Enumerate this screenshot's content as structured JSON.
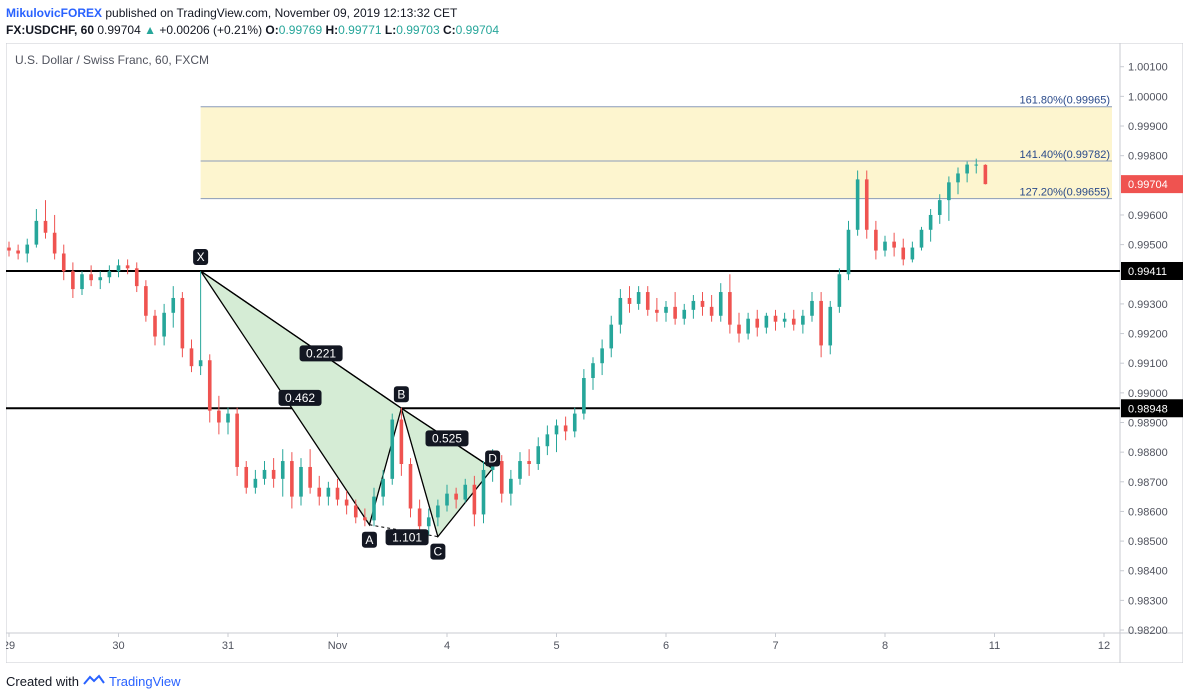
{
  "header": {
    "author": "MikulovicFOREX",
    "published_text": "published on TradingView.com, November 09, 2019 12:13:32 CET",
    "symbol": "FX:USDCHF, 60",
    "last": "0.99704",
    "change": "+0.00206 (+0.21%)",
    "o_label": "O:",
    "o_value": "0.99769",
    "h_label": "H:",
    "h_value": "0.99771",
    "l_label": "L:",
    "l_value": "0.99703",
    "c_label": "C:",
    "c_value": "0.99704"
  },
  "footer": {
    "created_with": "Created with",
    "brand": "TradingView"
  },
  "colors": {
    "up": "#26a69a",
    "down": "#ef5350",
    "pattern": "#d5ecd5",
    "zone": "#fdf5cf",
    "last_price": "#ef5350",
    "accent": "#2962ff"
  },
  "chart_data": {
    "type": "candlestick",
    "title": "U.S. Dollar / Swiss Franc, 60, FXCM",
    "ylim": [
      0.9819,
      1.0018
    ],
    "y_ticks": [
      "1.00100",
      "1.00000",
      "0.99900",
      "0.99800",
      "0.99600",
      "0.99500",
      "0.99300",
      "0.99200",
      "0.99100",
      "0.99000",
      "0.98900",
      "0.98800",
      "0.98700",
      "0.98600",
      "0.98500",
      "0.98400",
      "0.98300",
      "0.98200"
    ],
    "x_ticks": [
      "29",
      "30",
      "31",
      "Nov",
      "4",
      "5",
      "6",
      "7",
      "8",
      "11",
      "12"
    ],
    "horizontal_levels": [
      {
        "label": "0.99411",
        "value": 0.99411
      },
      {
        "label": "0.98948",
        "value": 0.98948
      }
    ],
    "last_price": {
      "label": "0.99704",
      "value": 0.99704
    },
    "fib_levels": [
      {
        "label": "161.80%(0.99965)",
        "value": 0.99965
      },
      {
        "label": "141.40%(0.99782)",
        "value": 0.99782
      },
      {
        "label": "127.20%(0.99655)",
        "value": 0.99655
      }
    ],
    "harmonic_points": [
      {
        "label": "X",
        "date": "Oct 30 18:00",
        "value": 0.99411
      },
      {
        "label": "A",
        "date": "Nov 1 07:00",
        "value": 0.98555
      },
      {
        "label": "B",
        "date": "Nov 1 14:00",
        "value": 0.98948
      },
      {
        "label": "C",
        "date": "Nov 1 22:00",
        "value": 0.98515
      },
      {
        "label": "D",
        "date": "Nov 4 10:00",
        "value": 0.98745
      }
    ],
    "ratios": [
      {
        "label": "0.462"
      },
      {
        "label": "0.221"
      },
      {
        "label": "0.525"
      },
      {
        "label": "1.101"
      }
    ],
    "candles": [
      {
        "t": "Oct 29 00:00",
        "o": 0.9949,
        "h": 0.9951,
        "l": 0.9946,
        "c": 0.9948
      },
      {
        "t": "Oct 29 02:00",
        "o": 0.9948,
        "h": 0.995,
        "l": 0.9945,
        "c": 0.9947
      },
      {
        "t": "Oct 29 04:00",
        "o": 0.9947,
        "h": 0.9952,
        "l": 0.9944,
        "c": 0.995
      },
      {
        "t": "Oct 29 06:00",
        "o": 0.995,
        "h": 0.9962,
        "l": 0.9949,
        "c": 0.9958
      },
      {
        "t": "Oct 29 08:00",
        "o": 0.9958,
        "h": 0.9965,
        "l": 0.9952,
        "c": 0.9954
      },
      {
        "t": "Oct 29 10:00",
        "o": 0.9954,
        "h": 0.996,
        "l": 0.9945,
        "c": 0.9947
      },
      {
        "t": "Oct 29 12:00",
        "o": 0.9947,
        "h": 0.995,
        "l": 0.9938,
        "c": 0.9941
      },
      {
        "t": "Oct 29 14:00",
        "o": 0.9941,
        "h": 0.9944,
        "l": 0.9932,
        "c": 0.9935
      },
      {
        "t": "Oct 29 16:00",
        "o": 0.9935,
        "h": 0.9941,
        "l": 0.9933,
        "c": 0.994
      },
      {
        "t": "Oct 29 18:00",
        "o": 0.994,
        "h": 0.9943,
        "l": 0.9936,
        "c": 0.9938
      },
      {
        "t": "Oct 29 20:00",
        "o": 0.9938,
        "h": 0.9941,
        "l": 0.9935,
        "c": 0.9939
      },
      {
        "t": "Oct 29 22:00",
        "o": 0.9939,
        "h": 0.9943,
        "l": 0.9937,
        "c": 0.9941
      },
      {
        "t": "Oct 30 00:00",
        "o": 0.9941,
        "h": 0.9945,
        "l": 0.9939,
        "c": 0.9943
      },
      {
        "t": "Oct 30 02:00",
        "o": 0.9943,
        "h": 0.9945,
        "l": 0.994,
        "c": 0.9942
      },
      {
        "t": "Oct 30 04:00",
        "o": 0.9942,
        "h": 0.9944,
        "l": 0.9934,
        "c": 0.9936
      },
      {
        "t": "Oct 30 06:00",
        "o": 0.9936,
        "h": 0.9938,
        "l": 0.9924,
        "c": 0.9926
      },
      {
        "t": "Oct 30 08:00",
        "o": 0.9926,
        "h": 0.9928,
        "l": 0.9916,
        "c": 0.9919
      },
      {
        "t": "Oct 30 10:00",
        "o": 0.9919,
        "h": 0.993,
        "l": 0.9916,
        "c": 0.9927
      },
      {
        "t": "Oct 30 12:00",
        "o": 0.9927,
        "h": 0.9936,
        "l": 0.9922,
        "c": 0.9932
      },
      {
        "t": "Oct 30 14:00",
        "o": 0.9932,
        "h": 0.9934,
        "l": 0.9912,
        "c": 0.9915
      },
      {
        "t": "Oct 30 16:00",
        "o": 0.9915,
        "h": 0.9918,
        "l": 0.9907,
        "c": 0.9909
      },
      {
        "t": "Oct 30 18:00",
        "o": 0.9909,
        "h": 0.9941,
        "l": 0.9906,
        "c": 0.9911
      },
      {
        "t": "Oct 30 20:00",
        "o": 0.9911,
        "h": 0.9913,
        "l": 0.989,
        "c": 0.9894
      },
      {
        "t": "Oct 30 22:00",
        "o": 0.9894,
        "h": 0.9899,
        "l": 0.9886,
        "c": 0.989
      },
      {
        "t": "Oct 31 00:00",
        "o": 0.989,
        "h": 0.9895,
        "l": 0.9886,
        "c": 0.9893
      },
      {
        "t": "Oct 31 02:00",
        "o": 0.9893,
        "h": 0.9895,
        "l": 0.9872,
        "c": 0.9875
      },
      {
        "t": "Oct 31 04:00",
        "o": 0.9875,
        "h": 0.9877,
        "l": 0.9866,
        "c": 0.9868
      },
      {
        "t": "Oct 31 06:00",
        "o": 0.9868,
        "h": 0.9874,
        "l": 0.9866,
        "c": 0.9871
      },
      {
        "t": "Oct 31 08:00",
        "o": 0.9871,
        "h": 0.9877,
        "l": 0.9869,
        "c": 0.9874
      },
      {
        "t": "Oct 31 10:00",
        "o": 0.9874,
        "h": 0.9878,
        "l": 0.9868,
        "c": 0.9871
      },
      {
        "t": "Oct 31 12:00",
        "o": 0.9871,
        "h": 0.9881,
        "l": 0.9865,
        "c": 0.9877
      },
      {
        "t": "Oct 31 14:00",
        "o": 0.9877,
        "h": 0.988,
        "l": 0.9861,
        "c": 0.9865
      },
      {
        "t": "Oct 31 16:00",
        "o": 0.9865,
        "h": 0.9878,
        "l": 0.9862,
        "c": 0.9875
      },
      {
        "t": "Oct 31 18:00",
        "o": 0.9875,
        "h": 0.9881,
        "l": 0.9866,
        "c": 0.9868
      },
      {
        "t": "Oct 31 20:00",
        "o": 0.9868,
        "h": 0.9872,
        "l": 0.9862,
        "c": 0.9865
      },
      {
        "t": "Oct 31 22:00",
        "o": 0.9865,
        "h": 0.987,
        "l": 0.9862,
        "c": 0.9868
      },
      {
        "t": "Nov 1 00:00",
        "o": 0.9868,
        "h": 0.9871,
        "l": 0.9862,
        "c": 0.9864
      },
      {
        "t": "Nov 1 02:00",
        "o": 0.9864,
        "h": 0.9867,
        "l": 0.9859,
        "c": 0.9862
      },
      {
        "t": "Nov 1 04:00",
        "o": 0.9862,
        "h": 0.9864,
        "l": 0.9856,
        "c": 0.9858
      },
      {
        "t": "Nov 1 06:00",
        "o": 0.9858,
        "h": 0.9861,
        "l": 0.9855,
        "c": 0.9857
      },
      {
        "t": "Nov 1 08:00",
        "o": 0.9857,
        "h": 0.9868,
        "l": 0.9855,
        "c": 0.9865
      },
      {
        "t": "Nov 1 10:00",
        "o": 0.9865,
        "h": 0.9874,
        "l": 0.9862,
        "c": 0.9871
      },
      {
        "t": "Nov 1 12:00",
        "o": 0.9871,
        "h": 0.9893,
        "l": 0.9869,
        "c": 0.9891
      },
      {
        "t": "Nov 1 14:00",
        "o": 0.9891,
        "h": 0.9895,
        "l": 0.9872,
        "c": 0.9876
      },
      {
        "t": "Nov 1 16:00",
        "o": 0.9876,
        "h": 0.9878,
        "l": 0.9858,
        "c": 0.9861
      },
      {
        "t": "Nov 1 18:00",
        "o": 0.9861,
        "h": 0.9864,
        "l": 0.9853,
        "c": 0.9855
      },
      {
        "t": "Nov 1 20:00",
        "o": 0.9855,
        "h": 0.9861,
        "l": 0.9852,
        "c": 0.9858
      },
      {
        "t": "Nov 1 22:00",
        "o": 0.9858,
        "h": 0.9864,
        "l": 0.9855,
        "c": 0.9862
      },
      {
        "t": "Nov 4 00:00",
        "o": 0.9862,
        "h": 0.9869,
        "l": 0.986,
        "c": 0.9866
      },
      {
        "t": "Nov 4 02:00",
        "o": 0.9866,
        "h": 0.9868,
        "l": 0.9861,
        "c": 0.9864
      },
      {
        "t": "Nov 4 04:00",
        "o": 0.9864,
        "h": 0.9871,
        "l": 0.9863,
        "c": 0.9869
      },
      {
        "t": "Nov 4 06:00",
        "o": 0.9869,
        "h": 0.9872,
        "l": 0.9855,
        "c": 0.9859
      },
      {
        "t": "Nov 4 08:00",
        "o": 0.9859,
        "h": 0.9877,
        "l": 0.9856,
        "c": 0.9874
      },
      {
        "t": "Nov 4 10:00",
        "o": 0.9874,
        "h": 0.9881,
        "l": 0.987,
        "c": 0.9877
      },
      {
        "t": "Nov 4 12:00",
        "o": 0.9877,
        "h": 0.9879,
        "l": 0.9863,
        "c": 0.9866
      },
      {
        "t": "Nov 4 14:00",
        "o": 0.9866,
        "h": 0.9874,
        "l": 0.9862,
        "c": 0.9871
      },
      {
        "t": "Nov 4 16:00",
        "o": 0.9871,
        "h": 0.988,
        "l": 0.9869,
        "c": 0.9877
      },
      {
        "t": "Nov 4 18:00",
        "o": 0.9877,
        "h": 0.9881,
        "l": 0.9872,
        "c": 0.9876
      },
      {
        "t": "Nov 4 20:00",
        "o": 0.9876,
        "h": 0.9885,
        "l": 0.9874,
        "c": 0.9882
      },
      {
        "t": "Nov 4 22:00",
        "o": 0.9882,
        "h": 0.9889,
        "l": 0.9879,
        "c": 0.9886
      },
      {
        "t": "Nov 5 00:00",
        "o": 0.9886,
        "h": 0.9891,
        "l": 0.988,
        "c": 0.9889
      },
      {
        "t": "Nov 5 02:00",
        "o": 0.9889,
        "h": 0.9892,
        "l": 0.9884,
        "c": 0.9887
      },
      {
        "t": "Nov 5 04:00",
        "o": 0.9887,
        "h": 0.9895,
        "l": 0.9885,
        "c": 0.9893
      },
      {
        "t": "Nov 5 06:00",
        "o": 0.9893,
        "h": 0.9908,
        "l": 0.9891,
        "c": 0.9905
      },
      {
        "t": "Nov 5 08:00",
        "o": 0.9905,
        "h": 0.9912,
        "l": 0.9901,
        "c": 0.991
      },
      {
        "t": "Nov 5 10:00",
        "o": 0.991,
        "h": 0.9918,
        "l": 0.9906,
        "c": 0.9915
      },
      {
        "t": "Nov 5 12:00",
        "o": 0.9915,
        "h": 0.9926,
        "l": 0.9912,
        "c": 0.9923
      },
      {
        "t": "Nov 5 14:00",
        "o": 0.9923,
        "h": 0.9935,
        "l": 0.992,
        "c": 0.9932
      },
      {
        "t": "Nov 5 16:00",
        "o": 0.9932,
        "h": 0.9936,
        "l": 0.9927,
        "c": 0.993
      },
      {
        "t": "Nov 5 18:00",
        "o": 0.993,
        "h": 0.9936,
        "l": 0.9928,
        "c": 0.9934
      },
      {
        "t": "Nov 5 20:00",
        "o": 0.9934,
        "h": 0.9936,
        "l": 0.9926,
        "c": 0.9928
      },
      {
        "t": "Nov 5 22:00",
        "o": 0.9928,
        "h": 0.9932,
        "l": 0.9924,
        "c": 0.9927
      },
      {
        "t": "Nov 6 00:00",
        "o": 0.9927,
        "h": 0.9931,
        "l": 0.9924,
        "c": 0.9929
      },
      {
        "t": "Nov 6 02:00",
        "o": 0.9929,
        "h": 0.9934,
        "l": 0.9923,
        "c": 0.9925
      },
      {
        "t": "Nov 6 04:00",
        "o": 0.9925,
        "h": 0.993,
        "l": 0.9923,
        "c": 0.9928
      },
      {
        "t": "Nov 6 06:00",
        "o": 0.9928,
        "h": 0.9933,
        "l": 0.9925,
        "c": 0.9931
      },
      {
        "t": "Nov 6 08:00",
        "o": 0.9931,
        "h": 0.9934,
        "l": 0.9926,
        "c": 0.9929
      },
      {
        "t": "Nov 6 10:00",
        "o": 0.9929,
        "h": 0.9933,
        "l": 0.9924,
        "c": 0.9926
      },
      {
        "t": "Nov 6 12:00",
        "o": 0.9926,
        "h": 0.9937,
        "l": 0.9924,
        "c": 0.9934
      },
      {
        "t": "Nov 6 14:00",
        "o": 0.9934,
        "h": 0.994,
        "l": 0.992,
        "c": 0.9923
      },
      {
        "t": "Nov 6 16:00",
        "o": 0.9923,
        "h": 0.9927,
        "l": 0.9917,
        "c": 0.992
      },
      {
        "t": "Nov 6 18:00",
        "o": 0.992,
        "h": 0.9927,
        "l": 0.9918,
        "c": 0.9925
      },
      {
        "t": "Nov 6 20:00",
        "o": 0.9925,
        "h": 0.9928,
        "l": 0.9919,
        "c": 0.9922
      },
      {
        "t": "Nov 6 22:00",
        "o": 0.9922,
        "h": 0.9927,
        "l": 0.992,
        "c": 0.9926
      },
      {
        "t": "Nov 7 00:00",
        "o": 0.9926,
        "h": 0.9928,
        "l": 0.9921,
        "c": 0.9924
      },
      {
        "t": "Nov 7 02:00",
        "o": 0.9924,
        "h": 0.9927,
        "l": 0.9922,
        "c": 0.9925
      },
      {
        "t": "Nov 7 04:00",
        "o": 0.9925,
        "h": 0.9928,
        "l": 0.9921,
        "c": 0.9923
      },
      {
        "t": "Nov 7 06:00",
        "o": 0.9923,
        "h": 0.9928,
        "l": 0.992,
        "c": 0.9926
      },
      {
        "t": "Nov 7 08:00",
        "o": 0.9926,
        "h": 0.9934,
        "l": 0.9924,
        "c": 0.9931
      },
      {
        "t": "Nov 7 10:00",
        "o": 0.9931,
        "h": 0.9934,
        "l": 0.9912,
        "c": 0.9916
      },
      {
        "t": "Nov 7 12:00",
        "o": 0.9916,
        "h": 0.9931,
        "l": 0.9913,
        "c": 0.9929
      },
      {
        "t": "Nov 7 14:00",
        "o": 0.9929,
        "h": 0.9942,
        "l": 0.9927,
        "c": 0.994
      },
      {
        "t": "Nov 7 16:00",
        "o": 0.994,
        "h": 0.9958,
        "l": 0.9938,
        "c": 0.9955
      },
      {
        "t": "Nov 7 18:00",
        "o": 0.9955,
        "h": 0.9975,
        "l": 0.9953,
        "c": 0.9972
      },
      {
        "t": "Nov 7 20:00",
        "o": 0.9972,
        "h": 0.9975,
        "l": 0.9952,
        "c": 0.9955
      },
      {
        "t": "Nov 7 22:00",
        "o": 0.9955,
        "h": 0.9958,
        "l": 0.9945,
        "c": 0.9948
      },
      {
        "t": "Nov 8 00:00",
        "o": 0.9948,
        "h": 0.9953,
        "l": 0.9946,
        "c": 0.9951
      },
      {
        "t": "Nov 8 02:00",
        "o": 0.9951,
        "h": 0.9954,
        "l": 0.9946,
        "c": 0.9949
      },
      {
        "t": "Nov 8 04:00",
        "o": 0.9949,
        "h": 0.9952,
        "l": 0.9943,
        "c": 0.9945
      },
      {
        "t": "Nov 8 06:00",
        "o": 0.9945,
        "h": 0.9951,
        "l": 0.9944,
        "c": 0.9949
      },
      {
        "t": "Nov 8 08:00",
        "o": 0.9949,
        "h": 0.9956,
        "l": 0.9948,
        "c": 0.9955
      },
      {
        "t": "Nov 8 10:00",
        "o": 0.9955,
        "h": 0.9962,
        "l": 0.9951,
        "c": 0.996
      },
      {
        "t": "Nov 8 12:00",
        "o": 0.996,
        "h": 0.9967,
        "l": 0.9957,
        "c": 0.9965
      },
      {
        "t": "Nov 8 14:00",
        "o": 0.9965,
        "h": 0.9973,
        "l": 0.9958,
        "c": 0.9971
      },
      {
        "t": "Nov 8 16:00",
        "o": 0.9971,
        "h": 0.9976,
        "l": 0.9967,
        "c": 0.9974
      },
      {
        "t": "Nov 8 18:00",
        "o": 0.9974,
        "h": 0.9978,
        "l": 0.9971,
        "c": 0.9977
      },
      {
        "t": "Nov 8 20:00",
        "o": 0.9977,
        "h": 0.9979,
        "l": 0.9974,
        "c": 0.9977
      },
      {
        "t": "Nov 8 22:00",
        "o": 0.99769,
        "h": 0.99771,
        "l": 0.99703,
        "c": 0.99704
      }
    ]
  }
}
